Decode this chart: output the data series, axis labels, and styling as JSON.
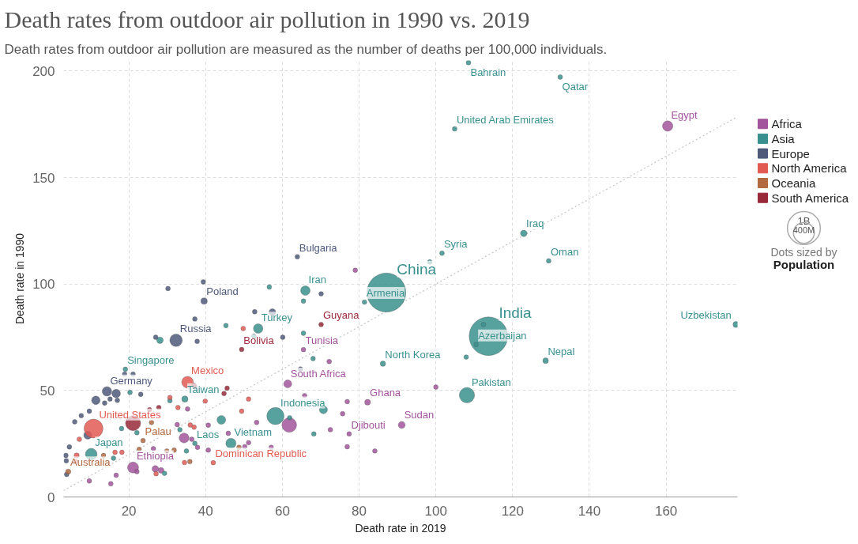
{
  "chart_data": {
    "type": "bubble",
    "title": "Death rates from outdoor air pollution in 1990 vs. 2019",
    "subtitle": "Death rates from outdoor air pollution are measured as the number of deaths per 100,000 individuals.",
    "xlabel": "Death rate in 2019",
    "ylabel": "Death rate in 1990",
    "xlim": [
      3,
      178.6
    ],
    "ylim": [
      0,
      205
    ],
    "xticks": [
      20,
      40,
      60,
      80,
      100,
      120,
      140,
      160
    ],
    "yticks": [
      0,
      50,
      100,
      150,
      200
    ],
    "grid": true,
    "legend": "right",
    "marker": "circle",
    "size_legend": [
      {
        "value": 1000,
        "label": "1B"
      },
      {
        "value": 400,
        "label": "400M"
      }
    ],
    "annotations": [
      "Dots sized by",
      "Population"
    ],
    "series": [
      {
        "type": "line",
        "color": "#c8c8c8",
        "line_style": "dotted",
        "marker": "none",
        "x": [
          3,
          178.6
        ],
        "values": [
          3,
          178.6
        ]
      },
      {
        "name": "Africa",
        "color": "#a2559c",
        "x": [
          160.4,
          79.0,
          65.5,
          72.2,
          61.4,
          100.0,
          82.2,
          76.9,
          65.8,
          75.7,
          91.1,
          77.4,
          72.5,
          76.9,
          84.1,
          61.8,
          53.3,
          57.1,
          51.2,
          50.2,
          45.9,
          21.1,
          22.1,
          26.9,
          28.4,
          34.4,
          36.4,
          37.9,
          40.7,
          40.7,
          35.3,
          26.4,
          32.6,
          9.7,
          15.3,
          16.7,
          37.2
        ],
        "values": [
          174.2,
          106.5,
          69.2,
          63.6,
          53.1,
          51.6,
          44.5,
          44.8,
          47.6,
          39.1,
          33.8,
          29.6,
          31.6,
          23.6,
          21.6,
          33.8,
          35.0,
          23.3,
          25.5,
          23.6,
          29.9,
          13.8,
          11.9,
          13.2,
          12.5,
          27.7,
          27.1,
          23.3,
          22.0,
          33.7,
          41.3,
          22.7,
          34.0,
          7.5,
          6.2,
          10.2,
          51.7
        ],
        "sizes": [
          100,
          20,
          20,
          20,
          59,
          20,
          31,
          20,
          20,
          20,
          44,
          20,
          20,
          20,
          20,
          200,
          20,
          20,
          20,
          20,
          20,
          112,
          20,
          40,
          30,
          90,
          20,
          20,
          20,
          20,
          20,
          20,
          20,
          20,
          20,
          20,
          20
        ],
        "value_labels": [
          "Egypt",
          null,
          "Tunisia",
          null,
          "South Africa",
          null,
          "Ghana",
          null,
          null,
          null,
          "Sudan",
          "Djibouti",
          null,
          null,
          null,
          null,
          null,
          null,
          null,
          null,
          null,
          "Ethiopia",
          null,
          null,
          null,
          null,
          null,
          null,
          null,
          null,
          null,
          null,
          null,
          null,
          null,
          null,
          null
        ]
      },
      {
        "name": "Asia",
        "color": "#3a908e",
        "x": [
          108.5,
          132.4,
          104.9,
          122.9,
          129.4,
          101.6,
          98.4,
          87.1,
          81.4,
          113.7,
          112.4,
          110.5,
          86.2,
          107.9,
          128.6,
          178.2,
          108.1,
          66.0,
          65.5,
          56.6,
          53.7,
          52.6,
          45.3,
          65.5,
          68.0,
          28.1,
          58.2,
          61.9,
          70.7,
          68.2,
          46.6,
          37.2,
          44.1,
          35.0,
          33.3,
          22.1,
          18.1,
          34.6,
          30.7,
          20.3,
          19.1,
          10.2,
          16.0,
          29.3
        ],
        "values": [
          204.0,
          197.2,
          172.9,
          123.8,
          110.9,
          114.5,
          110.4,
          96.0,
          91.5,
          75.5,
          81.0,
          71.6,
          62.6,
          65.7,
          64.0,
          81.0,
          47.8,
          96.9,
          92.0,
          98.6,
          79.1,
          75.5,
          80.5,
          76.9,
          65.0,
          73.6,
          38.0,
          37.2,
          41.0,
          29.6,
          25.2,
          25.2,
          36.2,
          21.6,
          31.6,
          30.2,
          32.1,
          46.0,
          45.2,
          49.1,
          60.0,
          20.1,
          18.2,
          11.1
        ],
        "sizes": [
          20,
          20,
          20,
          40,
          20,
          20,
          20,
          1400,
          20,
          1370,
          20,
          20,
          26,
          20,
          29,
          33,
          216,
          83,
          20,
          20,
          83,
          20,
          20,
          20,
          20,
          40,
          270,
          20,
          60,
          20,
          96,
          20,
          70,
          20,
          20,
          20,
          20,
          36,
          20,
          20,
          20,
          126,
          20,
          20
        ],
        "value_labels": [
          "Bahrain",
          "Qatar",
          "United Arab Emirates",
          "Iraq",
          "Oman",
          "Syria",
          null,
          "China",
          "Armenia",
          "India",
          null,
          "Azerbaijan",
          "North Korea",
          null,
          "Nepal",
          "Uzbekistan",
          "Pakistan",
          "Iran",
          null,
          null,
          "Turkey",
          null,
          null,
          null,
          null,
          null,
          "Indonesia",
          null,
          null,
          null,
          "Vietnam",
          "Laos",
          null,
          null,
          null,
          null,
          null,
          "Taiwan",
          null,
          null,
          "Singapore",
          "Japan",
          null,
          null
        ]
      },
      {
        "name": "Europe",
        "color": "#4f5a7b",
        "x": [
          63.9,
          39.4,
          30.2,
          39.6,
          70.1,
          57.4,
          52.8,
          37.2,
          32.3,
          37.8,
          60.1,
          27.0,
          64.7,
          14.3,
          16.7,
          11.4,
          13.7,
          15.1,
          17.0,
          23.1,
          9.7,
          7.6,
          5.9,
          9.3,
          4.5,
          3.6,
          3.7,
          3.8,
          21.1,
          18.9
        ],
        "values": [
          112.8,
          101.0,
          97.9,
          92.0,
          95.4,
          86.8,
          87.0,
          83.6,
          73.6,
          73.1,
          75.0,
          75.0,
          60.1,
          49.6,
          48.6,
          45.4,
          44.1,
          46.0,
          45.4,
          48.2,
          40.3,
          38.2,
          35.3,
          29.0,
          23.5,
          19.5,
          17.0,
          10.6,
          57.7,
          57.7
        ],
        "sizes": [
          20,
          20,
          20,
          38,
          20,
          44,
          20,
          20,
          145,
          20,
          20,
          20,
          20,
          83,
          67,
          67,
          20,
          20,
          20,
          20,
          20,
          20,
          20,
          60,
          20,
          20,
          20,
          20,
          20,
          20
        ],
        "value_labels": [
          "Bulgaria",
          null,
          null,
          "Poland",
          null,
          null,
          null,
          null,
          "Russia",
          null,
          null,
          null,
          null,
          "Germany",
          null,
          null,
          null,
          null,
          null,
          null,
          null,
          null,
          null,
          null,
          null,
          null,
          null,
          null,
          null,
          null
        ]
      },
      {
        "name": "North America",
        "color": "#e25b53",
        "x": [
          10.8,
          35.3,
          42.0,
          30.7,
          39.9,
          32.8,
          49.4,
          51.2,
          36.0,
          37.0,
          7.1,
          6.4,
          16.4,
          18.2,
          34.5,
          27.1,
          49.8,
          6.1
        ],
        "values": [
          32.1,
          53.9,
          16.1,
          46.7,
          45.0,
          42.0,
          40.3,
          46.0,
          33.8,
          32.8,
          27.1,
          19.5,
          21.0,
          21.0,
          16.2,
          10.9,
          79.1,
          16.7
        ],
        "sizes": [
          330,
          127,
          20,
          20,
          20,
          20,
          20,
          20,
          20,
          20,
          20,
          25,
          20,
          20,
          20,
          20,
          20,
          20
        ],
        "value_labels": [
          "United States",
          "Mexico",
          "Dominican Republic",
          null,
          null,
          null,
          null,
          null,
          null,
          null,
          null,
          null,
          null,
          null,
          null,
          null,
          null,
          null
        ]
      },
      {
        "name": "Oceania",
        "color": "#b1693f",
        "x": [
          4.2,
          23.7,
          25.9,
          13.4,
          22.7,
          29.9,
          31.8,
          35.9,
          48.7
        ],
        "values": [
          11.9,
          26.5,
          35.0,
          19.5,
          22.4,
          21.6,
          22.0,
          16.6,
          23.3
        ],
        "sizes": [
          25,
          20,
          20,
          20,
          20,
          20,
          20,
          20,
          20
        ],
        "value_labels": [
          "Australia",
          "Palau",
          null,
          null,
          null,
          null,
          null,
          null,
          null
        ]
      },
      {
        "name": "South America",
        "color": "#98293a",
        "x": [
          70.1,
          49.4,
          21.1,
          45.6,
          44.8,
          27.8,
          25.4,
          37.0
        ],
        "values": [
          81.0,
          69.3,
          34.7,
          51.1,
          48.6,
          42.0,
          41.0,
          52.4
        ],
        "sizes": [
          20,
          20,
          211,
          20,
          20,
          20,
          20,
          20
        ],
        "value_labels": [
          "Guyana",
          "Bolivia",
          null,
          null,
          null,
          null,
          null,
          null
        ]
      }
    ]
  }
}
